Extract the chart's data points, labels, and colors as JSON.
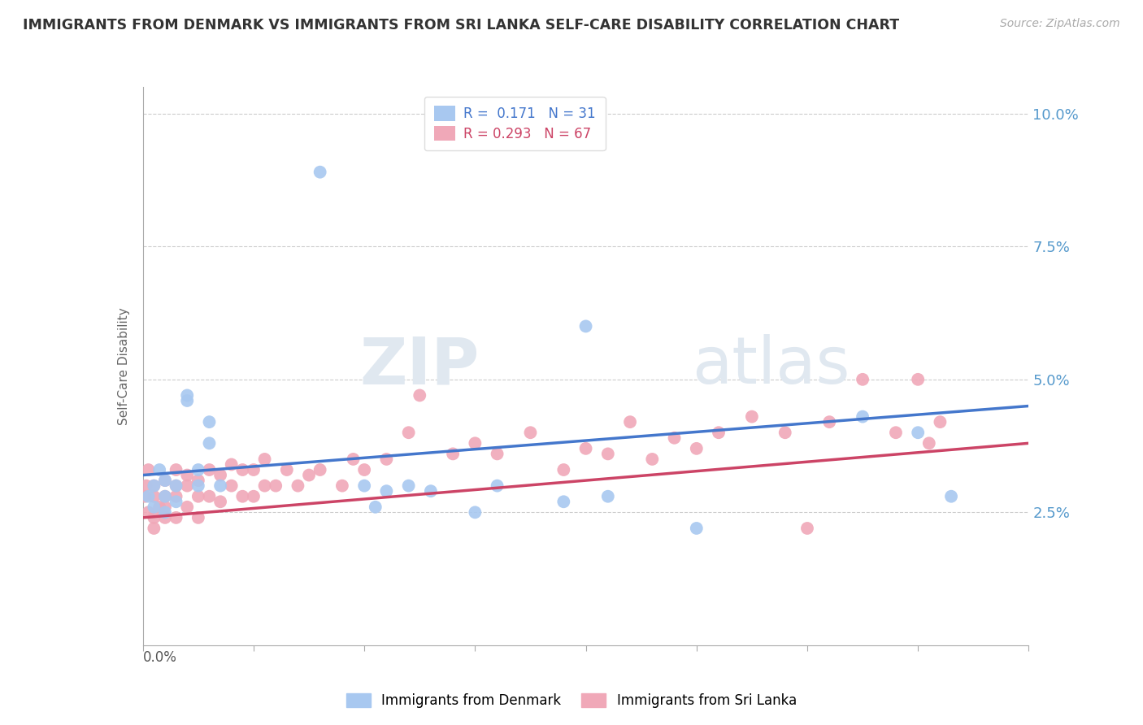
{
  "title": "IMMIGRANTS FROM DENMARK VS IMMIGRANTS FROM SRI LANKA SELF-CARE DISABILITY CORRELATION CHART",
  "source": "Source: ZipAtlas.com",
  "ylabel": "Self-Care Disability",
  "xlim": [
    0.0,
    0.08
  ],
  "ylim": [
    0.0,
    0.105
  ],
  "yticks": [
    0.025,
    0.05,
    0.075,
    0.1
  ],
  "ytick_labels": [
    "2.5%",
    "5.0%",
    "7.5%",
    "10.0%"
  ],
  "grid_color": "#cccccc",
  "background_color": "#ffffff",
  "denmark_color": "#a8c8f0",
  "sri_lanka_color": "#f0a8b8",
  "denmark_line_color": "#4477cc",
  "sri_lanka_line_color": "#cc4466",
  "legend_R_denmark": "0.171",
  "legend_N_denmark": "31",
  "legend_R_sri_lanka": "0.293",
  "legend_N_sri_lanka": "67",
  "watermark_zip": "ZIP",
  "watermark_atlas": "atlas",
  "dk_trend_x0": 0.0,
  "dk_trend_y0": 0.032,
  "dk_trend_x1": 0.08,
  "dk_trend_y1": 0.045,
  "sl_trend_x0": 0.0,
  "sl_trend_y0": 0.024,
  "sl_trend_x1": 0.08,
  "sl_trend_y1": 0.038,
  "dk_points_x": [
    0.0005,
    0.001,
    0.001,
    0.0015,
    0.002,
    0.002,
    0.002,
    0.003,
    0.003,
    0.004,
    0.004,
    0.005,
    0.005,
    0.006,
    0.006,
    0.007,
    0.016,
    0.02,
    0.021,
    0.022,
    0.024,
    0.026,
    0.03,
    0.032,
    0.038,
    0.04,
    0.042,
    0.05,
    0.065,
    0.07,
    0.073
  ],
  "dk_points_y": [
    0.028,
    0.03,
    0.026,
    0.033,
    0.028,
    0.025,
    0.031,
    0.027,
    0.03,
    0.046,
    0.047,
    0.033,
    0.03,
    0.042,
    0.038,
    0.03,
    0.089,
    0.03,
    0.026,
    0.029,
    0.03,
    0.029,
    0.025,
    0.03,
    0.027,
    0.06,
    0.028,
    0.022,
    0.043,
    0.04,
    0.028
  ],
  "sl_points_x": [
    0.0002,
    0.0003,
    0.0005,
    0.0005,
    0.001,
    0.001,
    0.001,
    0.001,
    0.0015,
    0.002,
    0.002,
    0.002,
    0.002,
    0.003,
    0.003,
    0.003,
    0.003,
    0.004,
    0.004,
    0.004,
    0.005,
    0.005,
    0.005,
    0.006,
    0.006,
    0.007,
    0.007,
    0.008,
    0.008,
    0.009,
    0.009,
    0.01,
    0.01,
    0.011,
    0.011,
    0.012,
    0.013,
    0.014,
    0.015,
    0.016,
    0.018,
    0.019,
    0.02,
    0.022,
    0.024,
    0.025,
    0.028,
    0.03,
    0.032,
    0.035,
    0.038,
    0.04,
    0.042,
    0.044,
    0.046,
    0.048,
    0.05,
    0.052,
    0.055,
    0.058,
    0.06,
    0.062,
    0.065,
    0.068,
    0.07,
    0.071,
    0.072
  ],
  "sl_points_y": [
    0.028,
    0.03,
    0.025,
    0.033,
    0.024,
    0.028,
    0.022,
    0.03,
    0.026,
    0.024,
    0.028,
    0.026,
    0.031,
    0.024,
    0.028,
    0.03,
    0.033,
    0.026,
    0.03,
    0.032,
    0.024,
    0.028,
    0.031,
    0.028,
    0.033,
    0.027,
    0.032,
    0.03,
    0.034,
    0.028,
    0.033,
    0.028,
    0.033,
    0.03,
    0.035,
    0.03,
    0.033,
    0.03,
    0.032,
    0.033,
    0.03,
    0.035,
    0.033,
    0.035,
    0.04,
    0.047,
    0.036,
    0.038,
    0.036,
    0.04,
    0.033,
    0.037,
    0.036,
    0.042,
    0.035,
    0.039,
    0.037,
    0.04,
    0.043,
    0.04,
    0.022,
    0.042,
    0.05,
    0.04,
    0.05,
    0.038,
    0.042
  ]
}
